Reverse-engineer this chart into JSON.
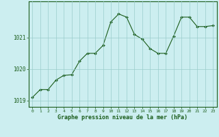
{
  "x": [
    0,
    1,
    2,
    3,
    4,
    5,
    6,
    7,
    8,
    9,
    10,
    11,
    12,
    13,
    14,
    15,
    16,
    17,
    18,
    19,
    20,
    21,
    22,
    23
  ],
  "y": [
    1019.1,
    1019.35,
    1019.35,
    1019.65,
    1019.8,
    1019.82,
    1020.25,
    1020.5,
    1020.5,
    1020.75,
    1021.5,
    1021.75,
    1021.65,
    1021.1,
    1020.95,
    1020.65,
    1020.5,
    1020.5,
    1021.05,
    1021.65,
    1021.65,
    1021.35,
    1021.35,
    1021.38
  ],
  "ylim": [
    1018.8,
    1022.15
  ],
  "yticks": [
    1019,
    1020,
    1021
  ],
  "xticks": [
    0,
    1,
    2,
    3,
    4,
    5,
    6,
    7,
    8,
    9,
    10,
    11,
    12,
    13,
    14,
    15,
    16,
    17,
    18,
    19,
    20,
    21,
    22,
    23
  ],
  "line_color": "#1a5c1a",
  "marker_color": "#1a5c1a",
  "bg_color": "#cceef0",
  "grid_color": "#99cccc",
  "xlabel": "Graphe pression niveau de la mer (hPa)",
  "tick_color": "#1a5c1a",
  "border_color": "#1a5c1a"
}
